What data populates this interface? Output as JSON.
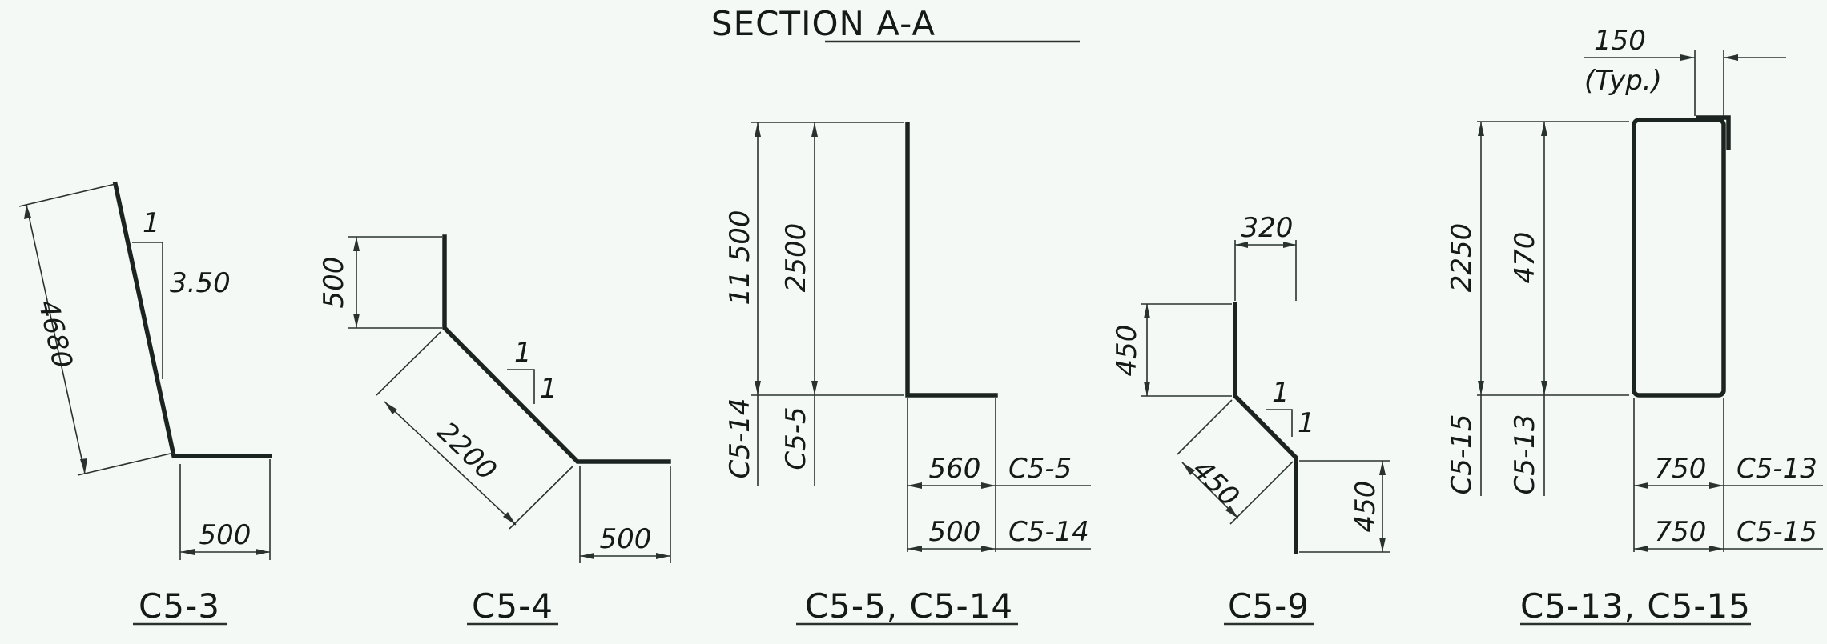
{
  "header": {
    "title": "SECTION A-A"
  },
  "sections": [
    {
      "name": "C5-3",
      "labels": {
        "slope_run": "1",
        "slope_rise": "3.50",
        "slant": "4680",
        "bottom": "500"
      }
    },
    {
      "name": "C5-4",
      "labels": {
        "top": "500",
        "slope_run": "1",
        "slope_rise": "1",
        "slant": "2200",
        "bottom": "500"
      }
    },
    {
      "name": "C5-5, C5-14",
      "labels": {
        "height_1": "11 500",
        "height_2": "2500",
        "mark_1": "C5-14",
        "mark_2": "C5-5",
        "base_1": "560",
        "base_1_mark": "C5-5",
        "base_2": "500",
        "base_2_mark": "C5-14"
      }
    },
    {
      "name": "C5-9",
      "labels": {
        "top": "320",
        "upper": "450",
        "slope_run": "1",
        "slope_rise": "1",
        "slant": "450",
        "lower": "450"
      }
    },
    {
      "name": "C5-13, C5-15",
      "labels": {
        "lip": "150",
        "lip_note": "(Typ.)",
        "height_1": "2250",
        "height_2": "470",
        "mark_1": "C5-15",
        "mark_2": "C5-13",
        "base_1": "750",
        "base_1_mark": "C5-13",
        "base_2": "750",
        "base_2_mark": "C5-15"
      }
    }
  ]
}
